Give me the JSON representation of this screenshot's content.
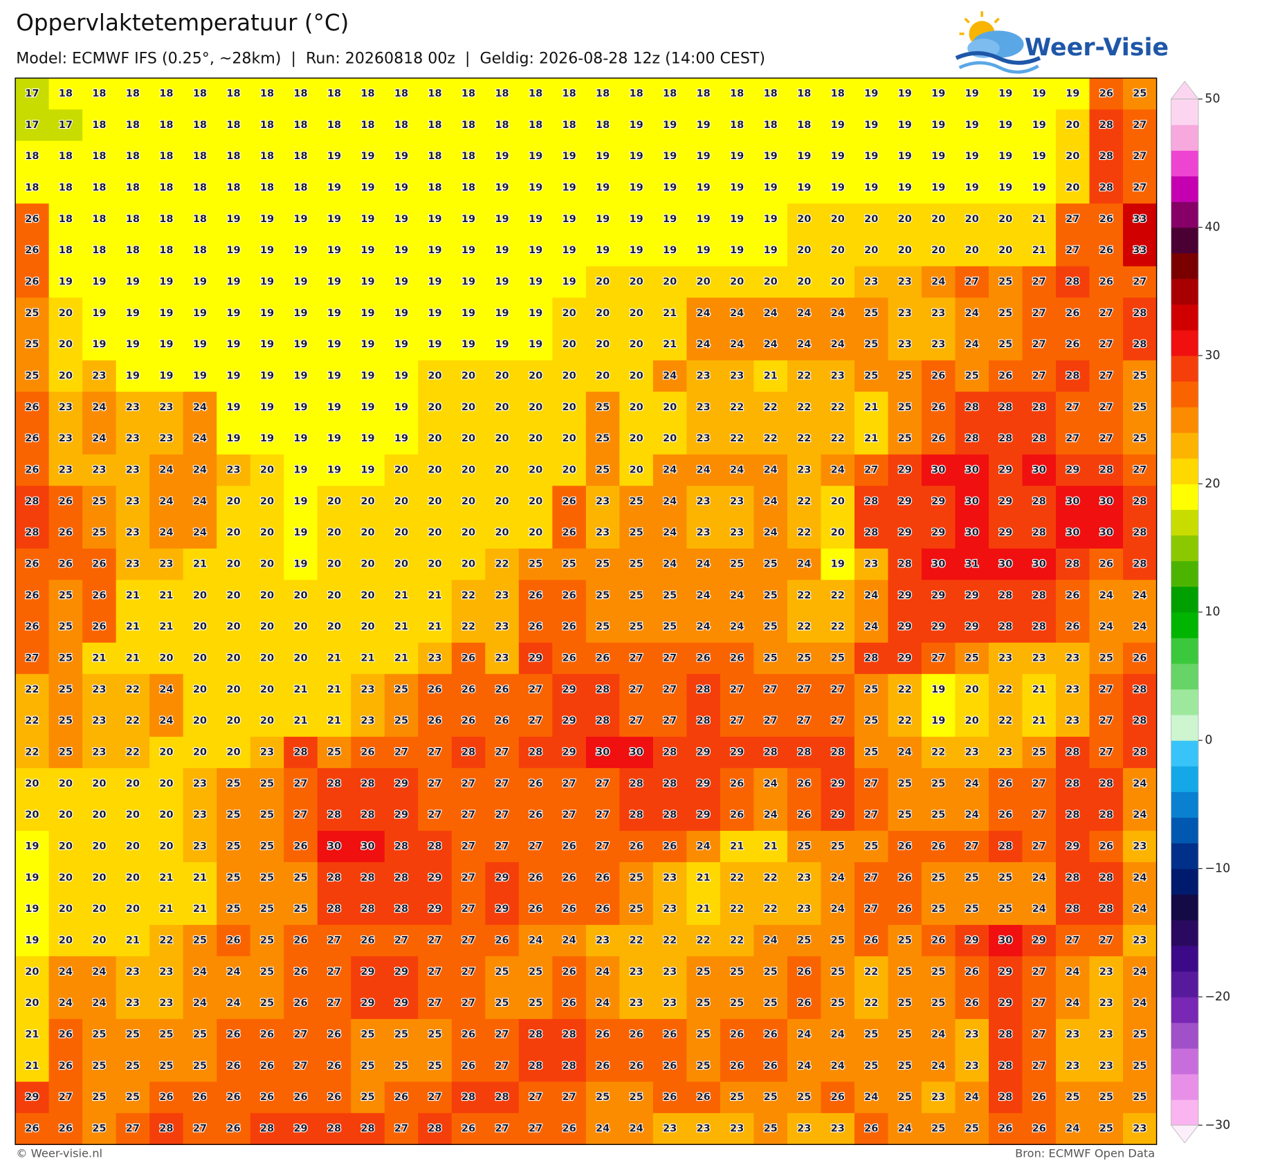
{
  "chart_data": {
    "type": "heatmap",
    "title": "Oppervlaktetemperatuur (°C)",
    "subtitle": "Model: ECMWF IFS (0.25°, ~28km)  |  Run: 20260818 00z  |  Geldig: 2026-08-28 12z (14:00 CEST)",
    "logo": "Weer-Visie",
    "footer_left": "© Weer-visie.nl",
    "footer_right": "Bron: ECMWF Open Data",
    "clim": [
      -30,
      50
    ],
    "cticks": [
      50,
      40,
      30,
      20,
      10,
      0,
      {
        "value": -10,
        "label": "−10"
      },
      {
        "value": -20,
        "label": "−20"
      },
      {
        "value": -30,
        "label": "−30"
      }
    ],
    "colors": [
      "#fab4f0",
      "#e890e8",
      "#c86edc",
      "#a050c8",
      "#7828b4",
      "#581a9c",
      "#3c0a88",
      "#2a0a60",
      "#140a46",
      "#001a6e",
      "#00308a",
      "#0058b0",
      "#0a80d0",
      "#14a8e8",
      "#38c4f8",
      "#ccf5d0",
      "#9ee89e",
      "#66d466",
      "#3cc83c",
      "#00b400",
      "#00a000",
      "#4cb400",
      "#8cc800",
      "#c8dc00",
      "#ffff00",
      "#ffd800",
      "#fdb400",
      "#fb8c00",
      "#fa6400",
      "#f53f0a",
      "#f01010",
      "#d00000",
      "#a80000",
      "#7a0000",
      "#4a0033",
      "#860068",
      "#c400b0",
      "#ee44d2",
      "#f7a8dd",
      "#fcd6f0"
    ],
    "values": [
      [
        17,
        18,
        18,
        18,
        18,
        18,
        18,
        18,
        18,
        18,
        18,
        18,
        18,
        18,
        18,
        18,
        18,
        18,
        18,
        18,
        18,
        18,
        18,
        18,
        18,
        19,
        19,
        19,
        19,
        19,
        19,
        19,
        26,
        25
      ],
      [
        17,
        17,
        18,
        18,
        18,
        18,
        18,
        18,
        18,
        18,
        18,
        18,
        18,
        18,
        18,
        18,
        18,
        18,
        19,
        19,
        19,
        18,
        18,
        18,
        19,
        19,
        19,
        19,
        19,
        19,
        19,
        20,
        28,
        27
      ],
      [
        18,
        18,
        18,
        18,
        18,
        18,
        18,
        18,
        18,
        19,
        19,
        19,
        18,
        18,
        19,
        19,
        19,
        19,
        19,
        19,
        19,
        19,
        19,
        19,
        19,
        19,
        19,
        19,
        19,
        19,
        19,
        20,
        28,
        27
      ],
      [
        18,
        18,
        18,
        18,
        18,
        18,
        18,
        18,
        18,
        19,
        19,
        19,
        18,
        18,
        19,
        19,
        19,
        19,
        19,
        19,
        19,
        19,
        19,
        19,
        19,
        19,
        19,
        19,
        19,
        19,
        19,
        20,
        28,
        27
      ],
      [
        26,
        18,
        18,
        18,
        18,
        18,
        19,
        19,
        19,
        19,
        19,
        19,
        19,
        19,
        19,
        19,
        19,
        19,
        19,
        19,
        19,
        19,
        19,
        20,
        20,
        20,
        20,
        20,
        20,
        20,
        21,
        27,
        26,
        33
      ],
      [
        26,
        18,
        18,
        18,
        18,
        18,
        19,
        19,
        19,
        19,
        19,
        19,
        19,
        19,
        19,
        19,
        19,
        19,
        19,
        19,
        19,
        19,
        19,
        20,
        20,
        20,
        20,
        20,
        20,
        20,
        21,
        27,
        26,
        33
      ],
      [
        26,
        19,
        19,
        19,
        19,
        19,
        19,
        19,
        19,
        19,
        19,
        19,
        19,
        19,
        19,
        19,
        19,
        20,
        20,
        20,
        20,
        20,
        20,
        20,
        20,
        23,
        23,
        24,
        27,
        25,
        27,
        28,
        26,
        27
      ],
      [
        25,
        20,
        19,
        19,
        19,
        19,
        19,
        19,
        19,
        19,
        19,
        19,
        19,
        19,
        19,
        19,
        20,
        20,
        20,
        21,
        24,
        24,
        24,
        24,
        24,
        25,
        23,
        23,
        24,
        25,
        27,
        26,
        27,
        28
      ],
      [
        25,
        20,
        19,
        19,
        19,
        19,
        19,
        19,
        19,
        19,
        19,
        19,
        19,
        19,
        19,
        19,
        20,
        20,
        20,
        21,
        24,
        24,
        24,
        24,
        24,
        25,
        23,
        23,
        24,
        25,
        27,
        26,
        27,
        28
      ],
      [
        25,
        20,
        23,
        19,
        19,
        19,
        19,
        19,
        19,
        19,
        19,
        19,
        20,
        20,
        20,
        20,
        20,
        20,
        20,
        24,
        23,
        23,
        21,
        22,
        23,
        25,
        25,
        26,
        25,
        26,
        27,
        28,
        27,
        25
      ],
      [
        26,
        23,
        24,
        23,
        23,
        24,
        19,
        19,
        19,
        19,
        19,
        19,
        20,
        20,
        20,
        20,
        20,
        25,
        20,
        20,
        23,
        22,
        22,
        22,
        22,
        21,
        25,
        26,
        28,
        28,
        28,
        27,
        27,
        25
      ],
      [
        26,
        23,
        24,
        23,
        23,
        24,
        19,
        19,
        19,
        19,
        19,
        19,
        20,
        20,
        20,
        20,
        20,
        25,
        20,
        20,
        23,
        22,
        22,
        22,
        22,
        21,
        25,
        26,
        28,
        28,
        28,
        27,
        27,
        25
      ],
      [
        26,
        23,
        23,
        23,
        24,
        24,
        23,
        20,
        19,
        19,
        19,
        20,
        20,
        20,
        20,
        20,
        20,
        25,
        20,
        24,
        24,
        24,
        24,
        23,
        24,
        27,
        29,
        30,
        30,
        29,
        30,
        29,
        28,
        27
      ],
      [
        28,
        26,
        25,
        23,
        24,
        24,
        20,
        20,
        19,
        20,
        20,
        20,
        20,
        20,
        20,
        20,
        26,
        23,
        25,
        24,
        23,
        23,
        24,
        22,
        20,
        28,
        29,
        29,
        30,
        29,
        28,
        30,
        30,
        28
      ],
      [
        28,
        26,
        25,
        23,
        24,
        24,
        20,
        20,
        19,
        20,
        20,
        20,
        20,
        20,
        20,
        20,
        26,
        23,
        25,
        24,
        23,
        23,
        24,
        22,
        20,
        28,
        29,
        29,
        30,
        29,
        28,
        30,
        30,
        28
      ],
      [
        26,
        26,
        26,
        23,
        23,
        21,
        20,
        20,
        19,
        20,
        20,
        20,
        20,
        20,
        22,
        25,
        25,
        25,
        25,
        24,
        24,
        25,
        25,
        24,
        19,
        23,
        28,
        30,
        31,
        30,
        30,
        28,
        26,
        28
      ],
      [
        26,
        25,
        26,
        21,
        21,
        20,
        20,
        20,
        20,
        20,
        20,
        21,
        21,
        22,
        23,
        26,
        26,
        25,
        25,
        25,
        24,
        24,
        25,
        22,
        22,
        24,
        29,
        29,
        29,
        28,
        28,
        26,
        24,
        24
      ],
      [
        26,
        25,
        26,
        21,
        21,
        20,
        20,
        20,
        20,
        20,
        20,
        21,
        21,
        22,
        23,
        26,
        26,
        25,
        25,
        25,
        24,
        24,
        25,
        22,
        22,
        24,
        29,
        29,
        29,
        28,
        28,
        26,
        24,
        24
      ],
      [
        27,
        25,
        21,
        21,
        20,
        20,
        20,
        20,
        20,
        21,
        21,
        21,
        23,
        26,
        23,
        29,
        26,
        26,
        27,
        27,
        26,
        26,
        25,
        25,
        25,
        28,
        29,
        27,
        25,
        23,
        23,
        23,
        25,
        26
      ],
      [
        22,
        25,
        23,
        22,
        24,
        20,
        20,
        20,
        21,
        21,
        23,
        25,
        26,
        26,
        26,
        27,
        29,
        28,
        27,
        27,
        28,
        27,
        27,
        27,
        27,
        25,
        22,
        19,
        20,
        22,
        21,
        23,
        27,
        28
      ],
      [
        22,
        25,
        23,
        22,
        24,
        20,
        20,
        20,
        21,
        21,
        23,
        25,
        26,
        26,
        26,
        27,
        29,
        28,
        27,
        27,
        28,
        27,
        27,
        27,
        27,
        25,
        22,
        19,
        20,
        22,
        21,
        23,
        27,
        28
      ],
      [
        22,
        25,
        23,
        22,
        20,
        20,
        20,
        23,
        28,
        25,
        26,
        27,
        27,
        28,
        27,
        28,
        29,
        30,
        30,
        28,
        29,
        29,
        28,
        28,
        28,
        25,
        24,
        22,
        23,
        23,
        25,
        28,
        27,
        28
      ],
      [
        20,
        20,
        20,
        20,
        20,
        23,
        25,
        25,
        27,
        28,
        28,
        29,
        27,
        27,
        27,
        26,
        27,
        27,
        28,
        28,
        29,
        26,
        24,
        26,
        29,
        27,
        25,
        25,
        24,
        26,
        27,
        28,
        28,
        24
      ],
      [
        20,
        20,
        20,
        20,
        20,
        23,
        25,
        25,
        27,
        28,
        28,
        29,
        27,
        27,
        27,
        26,
        27,
        27,
        28,
        28,
        29,
        26,
        24,
        26,
        29,
        27,
        25,
        25,
        24,
        26,
        27,
        28,
        28,
        24
      ],
      [
        19,
        20,
        20,
        20,
        20,
        23,
        25,
        25,
        26,
        30,
        30,
        28,
        28,
        27,
        27,
        27,
        26,
        27,
        26,
        26,
        24,
        21,
        21,
        25,
        25,
        25,
        26,
        26,
        27,
        28,
        27,
        29,
        26,
        23
      ],
      [
        19,
        20,
        20,
        20,
        21,
        21,
        25,
        25,
        25,
        28,
        28,
        28,
        29,
        27,
        29,
        26,
        26,
        26,
        25,
        23,
        21,
        22,
        22,
        23,
        24,
        27,
        26,
        25,
        25,
        25,
        24,
        28,
        28,
        24
      ],
      [
        19,
        20,
        20,
        20,
        21,
        21,
        25,
        25,
        25,
        28,
        28,
        28,
        29,
        27,
        29,
        26,
        26,
        26,
        25,
        23,
        21,
        22,
        22,
        23,
        24,
        27,
        26,
        25,
        25,
        25,
        24,
        28,
        28,
        24
      ],
      [
        19,
        20,
        20,
        21,
        22,
        25,
        26,
        25,
        26,
        27,
        26,
        27,
        27,
        27,
        26,
        24,
        24,
        23,
        22,
        22,
        22,
        22,
        24,
        25,
        25,
        26,
        25,
        26,
        29,
        30,
        29,
        27,
        27,
        23
      ],
      [
        20,
        24,
        24,
        23,
        23,
        24,
        24,
        25,
        26,
        27,
        29,
        29,
        27,
        27,
        25,
        25,
        26,
        24,
        23,
        23,
        25,
        25,
        25,
        26,
        25,
        22,
        25,
        25,
        26,
        29,
        27,
        24,
        23,
        24
      ],
      [
        20,
        24,
        24,
        23,
        23,
        24,
        24,
        25,
        26,
        27,
        29,
        29,
        27,
        27,
        25,
        25,
        26,
        24,
        23,
        23,
        25,
        25,
        25,
        26,
        25,
        22,
        25,
        25,
        26,
        29,
        27,
        24,
        23,
        24
      ],
      [
        21,
        26,
        25,
        25,
        25,
        25,
        26,
        26,
        27,
        26,
        25,
        25,
        25,
        26,
        27,
        28,
        28,
        26,
        26,
        26,
        25,
        26,
        26,
        24,
        24,
        25,
        25,
        24,
        23,
        28,
        27,
        23,
        23,
        25
      ],
      [
        21,
        26,
        25,
        25,
        25,
        25,
        26,
        26,
        27,
        26,
        25,
        25,
        25,
        26,
        27,
        28,
        28,
        26,
        26,
        26,
        25,
        26,
        26,
        24,
        24,
        25,
        25,
        24,
        23,
        28,
        27,
        23,
        23,
        25
      ],
      [
        29,
        27,
        25,
        25,
        26,
        26,
        26,
        26,
        26,
        26,
        25,
        26,
        27,
        28,
        28,
        27,
        27,
        25,
        25,
        26,
        26,
        25,
        25,
        25,
        26,
        24,
        25,
        23,
        24,
        28,
        26,
        25,
        25,
        25
      ],
      [
        26,
        26,
        25,
        27,
        28,
        27,
        26,
        28,
        29,
        28,
        28,
        27,
        28,
        26,
        27,
        27,
        26,
        24,
        24,
        23,
        23,
        23,
        25,
        23,
        23,
        26,
        24,
        25,
        25,
        26,
        26,
        24,
        25,
        23
      ]
    ]
  }
}
